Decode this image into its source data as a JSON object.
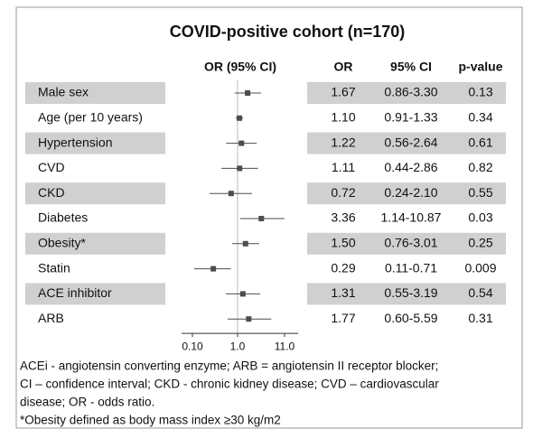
{
  "chart_data": {
    "type": "forest",
    "title": "COVID-positive cohort (n=170)",
    "columns": [
      "OR (95% CI)",
      "OR",
      "95% CI",
      "p-value"
    ],
    "categories": [
      "Male sex",
      "Age (per 10 years)",
      "Hypertension",
      "CVD",
      "CKD",
      "Diabetes",
      "Obesity*",
      "Statin",
      "ACE inhibitor",
      "ARB"
    ],
    "values": [
      1.67,
      1.1,
      1.22,
      1.11,
      0.72,
      3.36,
      1.5,
      0.29,
      1.31,
      1.77
    ],
    "value_labels": [
      "1.67",
      "1.10",
      "1.22",
      "1.11",
      "0.72",
      "3.36",
      "1.50",
      "0.29",
      "1.31",
      "1.77"
    ],
    "ci_low": [
      0.86,
      0.91,
      0.56,
      0.44,
      0.24,
      1.14,
      0.76,
      0.11,
      0.55,
      0.6
    ],
    "ci_high": [
      3.3,
      1.33,
      2.64,
      2.86,
      2.1,
      10.87,
      3.01,
      0.71,
      3.19,
      5.59
    ],
    "ci_labels": [
      "0.86-3.30",
      "0.91-1.33",
      "0.56-2.64",
      "0.44-2.86",
      "0.24-2.10",
      "1.14-10.87",
      "0.76-3.01",
      "0.11-0.71",
      "0.55-3.19",
      "0.60-5.59"
    ],
    "p_values": [
      0.13,
      0.34,
      0.61,
      0.82,
      0.55,
      0.03,
      0.25,
      0.009,
      0.54,
      0.31
    ],
    "color": "#4d4d4d",
    "log_x": true,
    "xlim": [
      0.1,
      11
    ],
    "xticks": [
      {
        "value": 0.1,
        "label": "0.10"
      },
      {
        "value": 1,
        "label": "1.0"
      },
      {
        "value": 11,
        "label": "11.0"
      }
    ],
    "footnotes": [
      "ACEi - angiotensin converting enzyme; ARB = angiotensin II receptor blocker;",
      "CI – confidence interval; CKD - chronic kidney disease; CVD – cardiovascular",
      "disease; OR - odds ratio.",
      "*Obesity defined as body mass index  ≥30 kg/m2"
    ]
  }
}
